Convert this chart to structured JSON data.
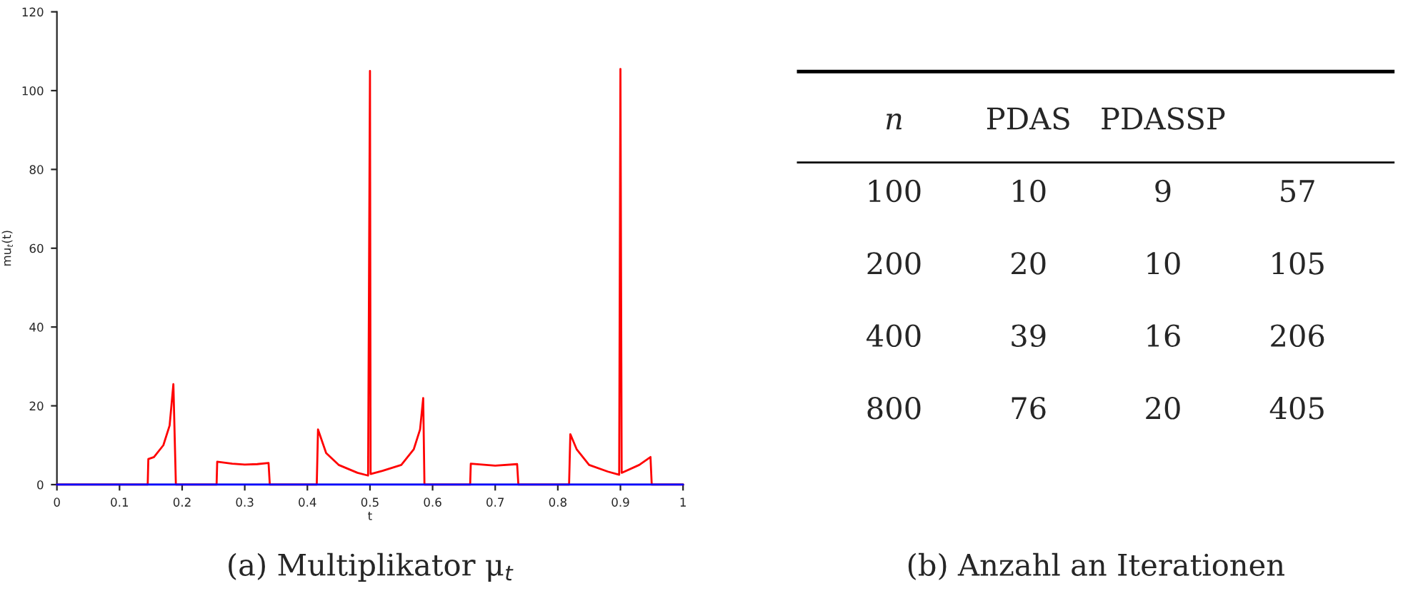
{
  "chart_data": [
    {
      "type": "line",
      "xlabel": "t",
      "ylabel": "mu$_{t}$(t)",
      "annotations": [
        "(a) Multiplikator μ$_{t}$"
      ],
      "xlim": [
        0,
        1
      ],
      "ylim": [
        0,
        120
      ],
      "xticks": [
        0,
        0.1,
        0.2,
        0.3,
        0.4,
        0.5,
        0.6,
        0.7,
        0.8,
        0.9,
        1
      ],
      "yticks": [
        0,
        20,
        40,
        60,
        80,
        100,
        120
      ],
      "grid": false,
      "series": [
        {
          "color": "#ff0000",
          "x": [
            0,
            0.145,
            0.146,
            0.155,
            0.17,
            0.18,
            0.186,
            0.19,
            0.255,
            0.256,
            0.28,
            0.3,
            0.32,
            0.338,
            0.34,
            0.415,
            0.417,
            0.43,
            0.45,
            0.48,
            0.497,
            0.5,
            0.501,
            0.52,
            0.55,
            0.57,
            0.58,
            0.585,
            0.587,
            0.66,
            0.661,
            0.7,
            0.735,
            0.737,
            0.818,
            0.82,
            0.83,
            0.85,
            0.88,
            0.898,
            0.9,
            0.902,
            0.93,
            0.948,
            0.95,
            1
          ],
          "values": [
            0,
            0,
            6.5,
            7,
            10,
            15,
            25.5,
            0,
            0,
            5.8,
            5.3,
            5.1,
            5.2,
            5.5,
            0,
            0,
            14,
            8,
            5,
            3,
            2.3,
            105,
            2.7,
            3.5,
            5,
            9,
            14,
            22,
            0,
            0,
            5.3,
            4.8,
            5.2,
            0,
            0,
            12.8,
            9,
            5,
            3.3,
            2.5,
            105.5,
            3,
            5,
            7,
            0,
            0
          ]
        },
        {
          "color": "#0000ff",
          "x": [
            0,
            1
          ],
          "values": [
            0,
            0
          ]
        }
      ]
    },
    {
      "type": "other",
      "categories": [
        "n",
        "PDAS",
        "PDASSP",
        null
      ],
      "annotations": [
        "100",
        "10",
        "9",
        "57",
        "200",
        "20",
        "10",
        "105",
        "400",
        "39",
        "16",
        "206",
        "800",
        "76",
        "20",
        "405",
        "(b) Anzahl an Iterationen"
      ]
    }
  ]
}
